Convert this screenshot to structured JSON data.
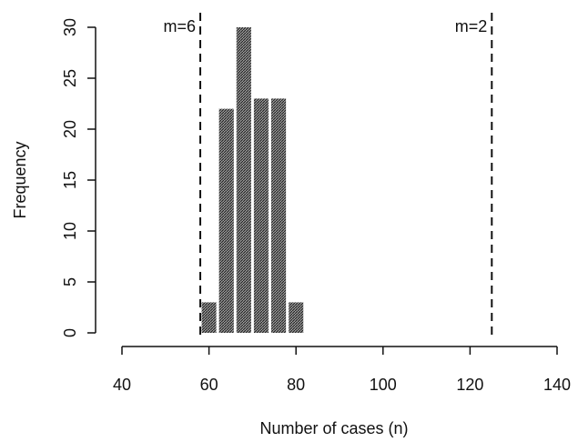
{
  "chart_data": {
    "type": "bar",
    "title": "",
    "xlabel": "Number of cases (n)",
    "ylabel": "Frequency",
    "xlim": [
      40,
      140
    ],
    "ylim": [
      0,
      30
    ],
    "x_ticks": [
      40,
      60,
      80,
      100,
      120,
      140
    ],
    "y_ticks": [
      0,
      5,
      10,
      15,
      20,
      25,
      30
    ],
    "bin_width": 4,
    "bins": [
      {
        "start": 58,
        "end": 62,
        "value": 3
      },
      {
        "start": 62,
        "end": 66,
        "value": 22
      },
      {
        "start": 66,
        "end": 70,
        "value": 30
      },
      {
        "start": 70,
        "end": 74,
        "value": 23
      },
      {
        "start": 74,
        "end": 78,
        "value": 23
      },
      {
        "start": 78,
        "end": 82,
        "value": 3
      }
    ],
    "reference_lines": [
      {
        "x": 58,
        "label": "m=6"
      },
      {
        "x": 125,
        "label": "m=2"
      }
    ],
    "bar_fill": "#555555",
    "grid": false,
    "legend": "none"
  }
}
